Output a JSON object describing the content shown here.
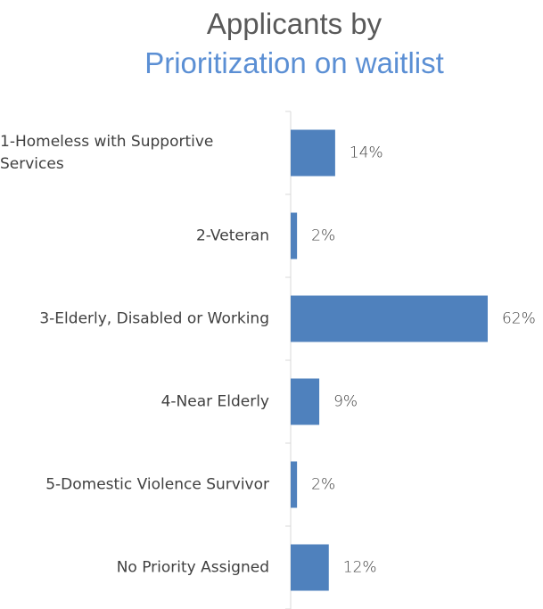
{
  "chart_data": {
    "type": "barh",
    "title": "Applicants by",
    "subtitle": "Prioritization on waitlist",
    "categories": [
      "1-Homeless with Supportive Services",
      "2-Veteran",
      "3-Elderly, Disabled or Working",
      "4-Near Elderly",
      "5-Domestic Violence Survivor",
      "No Priority Assigned"
    ],
    "values": [
      14,
      2,
      62,
      9,
      2,
      12
    ],
    "value_labels": [
      "14%",
      "2%",
      "62%",
      "9%",
      "2%",
      "12%"
    ],
    "color": "#4f81bd",
    "xlim": [
      0,
      70
    ]
  }
}
